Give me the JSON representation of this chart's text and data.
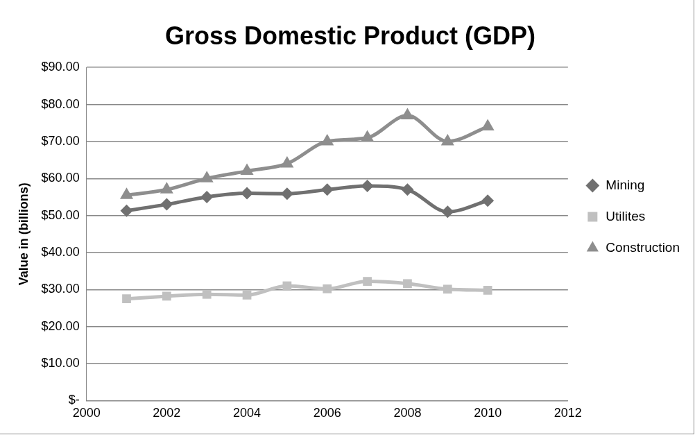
{
  "chart_data": {
    "type": "line",
    "title": "Gross Domestic Product (GDP)",
    "ylabel": "Value in (billions)",
    "x": [
      2001,
      2002,
      2003,
      2004,
      2005,
      2006,
      2007,
      2008,
      2009,
      2010
    ],
    "series": [
      {
        "name": "Mining",
        "color": "#707070",
        "marker": "diamond",
        "values": [
          51.3,
          53,
          55,
          56,
          55.9,
          57,
          58,
          57,
          51,
          54
        ]
      },
      {
        "name": "Utilites",
        "color": "#c0c0c0",
        "marker": "square",
        "values": [
          27.5,
          28.2,
          28.7,
          28.5,
          31,
          30.2,
          32.2,
          31.6,
          30.1,
          29.8
        ]
      },
      {
        "name": "Construction",
        "color": "#8e8e8e",
        "marker": "triangle",
        "values": [
          55.5,
          57,
          60,
          62,
          64,
          70,
          71,
          77,
          70,
          74
        ]
      }
    ],
    "xlim": [
      2000,
      2012
    ],
    "xticks": [
      2000,
      2002,
      2004,
      2006,
      2008,
      2010,
      2012
    ],
    "ylim": [
      0,
      90
    ],
    "yticks": [
      {
        "value": 0,
        "label": "$-"
      },
      {
        "value": 10,
        "label": "$10.00"
      },
      {
        "value": 20,
        "label": "$20.00"
      },
      {
        "value": 30,
        "label": "$30.00"
      },
      {
        "value": 40,
        "label": "$40.00"
      },
      {
        "value": 50,
        "label": "$50.00"
      },
      {
        "value": 60,
        "label": "$60.00"
      },
      {
        "value": 70,
        "label": "$70.00"
      },
      {
        "value": 80,
        "label": "$80.00"
      },
      {
        "value": 90,
        "label": "$90.00"
      }
    ],
    "grid": "y",
    "legend": "right"
  }
}
